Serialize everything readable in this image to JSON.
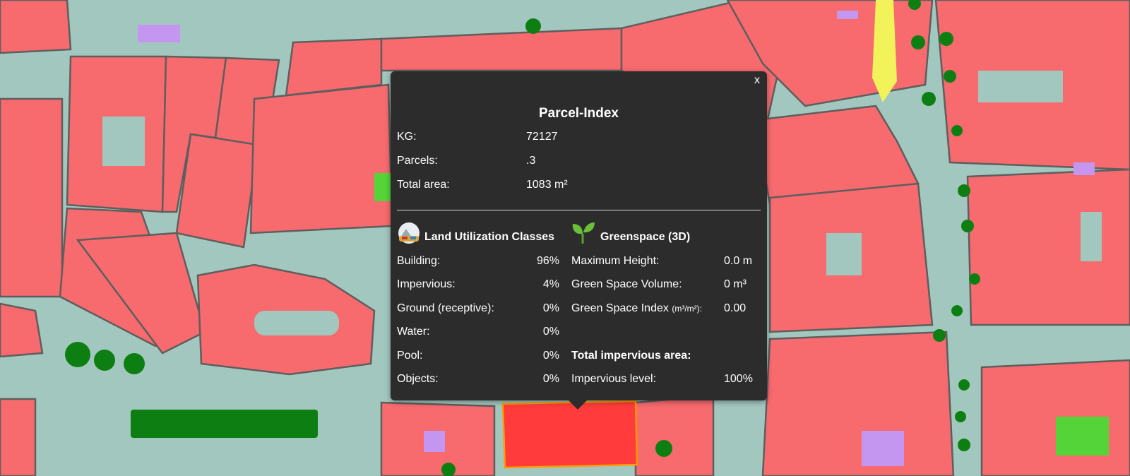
{
  "popup": {
    "close_label": "x",
    "title": "Parcel-Index",
    "info": [
      {
        "label": "KG:",
        "value": "72127"
      },
      {
        "label": "Parcels:",
        "value": ".3"
      },
      {
        "label": "Total area:",
        "value": "1083 m²"
      }
    ],
    "land_use": {
      "heading": "Land Utilization Classes",
      "icon": "landscape-icon",
      "rows": [
        {
          "label": "Building:",
          "value": "96%"
        },
        {
          "label": "Impervious:",
          "value": "4%"
        },
        {
          "label": "Ground (receptive):",
          "value": "0%"
        },
        {
          "label": "Water:",
          "value": "0%"
        },
        {
          "label": "Pool:",
          "value": "0%"
        },
        {
          "label": "Objects:",
          "value": "0%"
        }
      ]
    },
    "greenspace": {
      "heading": "Greenspace (3D)",
      "icon": "sprout-icon",
      "rows": [
        {
          "label": "Maximum Height:",
          "value": "0.0 m"
        },
        {
          "label": "Green Space Volume:",
          "value": "0 m³"
        },
        {
          "label": "Green Space Index",
          "unit": "(m³/m²):",
          "value": "0.00"
        }
      ],
      "impervious_heading": "Total impervious area:",
      "impervious": {
        "label": "Impervious level:",
        "value": "100%"
      }
    }
  },
  "colors": {
    "street": "#a2c7bf",
    "building": "#f76a6e",
    "selected": "#ff3b3b",
    "selected_outline": "#ff9a00",
    "tree": "#0d7f12",
    "lawn": "#55d43a",
    "object": "#c596f0",
    "parcel_line": "#5e5e5e"
  }
}
